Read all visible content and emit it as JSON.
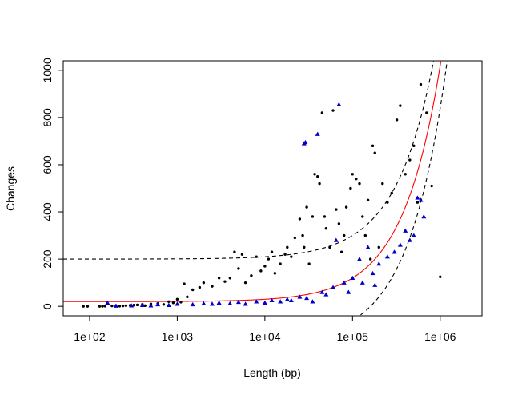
{
  "chart_data": {
    "type": "scatter",
    "title": "",
    "xlabel": "Length (bp)",
    "ylabel": "Changes",
    "x_scale": "log",
    "xlim": [
      50,
      3000000
    ],
    "ylim": [
      -40,
      1040
    ],
    "x_ticks": [
      {
        "value": 100,
        "label": "1e+02"
      },
      {
        "value": 1000,
        "label": "1e+03"
      },
      {
        "value": 10000,
        "label": "1e+04"
      },
      {
        "value": 100000,
        "label": "1e+05"
      },
      {
        "value": 1000000,
        "label": "1e+06"
      }
    ],
    "y_ticks": [
      {
        "value": 0,
        "label": "0"
      },
      {
        "value": 200,
        "label": "200"
      },
      {
        "value": 400,
        "label": "400"
      },
      {
        "value": 600,
        "label": "600"
      },
      {
        "value": 800,
        "label": "800"
      },
      {
        "value": 1000,
        "label": "1000"
      }
    ],
    "grid": false,
    "legend": "none",
    "series": [
      {
        "marker": "circle",
        "color": "#000000",
        "points": [
          [
            85,
            0
          ],
          [
            95,
            0
          ],
          [
            130,
            0
          ],
          [
            140,
            0
          ],
          [
            150,
            1
          ],
          [
            180,
            2
          ],
          [
            200,
            3
          ],
          [
            220,
            1
          ],
          [
            240,
            2
          ],
          [
            260,
            3
          ],
          [
            290,
            4
          ],
          [
            320,
            5
          ],
          [
            350,
            6
          ],
          [
            400,
            8
          ],
          [
            430,
            3
          ],
          [
            500,
            10
          ],
          [
            600,
            12
          ],
          [
            700,
            8
          ],
          [
            800,
            20
          ],
          [
            900,
            15
          ],
          [
            1000,
            30
          ],
          [
            1100,
            18
          ],
          [
            1200,
            95
          ],
          [
            1300,
            40
          ],
          [
            1500,
            70
          ],
          [
            1800,
            80
          ],
          [
            2000,
            100
          ],
          [
            2500,
            85
          ],
          [
            3000,
            120
          ],
          [
            3500,
            105
          ],
          [
            4000,
            120
          ],
          [
            4500,
            230
          ],
          [
            5000,
            160
          ],
          [
            5500,
            220
          ],
          [
            6000,
            100
          ],
          [
            7000,
            130
          ],
          [
            8000,
            210
          ],
          [
            9000,
            150
          ],
          [
            10000,
            170
          ],
          [
            11000,
            200
          ],
          [
            12000,
            230
          ],
          [
            13000,
            140
          ],
          [
            15000,
            180
          ],
          [
            17000,
            220
          ],
          [
            18000,
            250
          ],
          [
            20000,
            210
          ],
          [
            22000,
            290
          ],
          [
            25000,
            370
          ],
          [
            27000,
            300
          ],
          [
            28000,
            250
          ],
          [
            30000,
            420
          ],
          [
            32000,
            180
          ],
          [
            35000,
            380
          ],
          [
            37000,
            560
          ],
          [
            40000,
            550
          ],
          [
            42000,
            520
          ],
          [
            45000,
            820
          ],
          [
            48000,
            380
          ],
          [
            50000,
            330
          ],
          [
            55000,
            250
          ],
          [
            60000,
            830
          ],
          [
            65000,
            410
          ],
          [
            70000,
            350
          ],
          [
            75000,
            230
          ],
          [
            80000,
            300
          ],
          [
            85000,
            420
          ],
          [
            95000,
            500
          ],
          [
            100000,
            560
          ],
          [
            110000,
            540
          ],
          [
            120000,
            520
          ],
          [
            130000,
            380
          ],
          [
            140000,
            300
          ],
          [
            150000,
            450
          ],
          [
            160000,
            200
          ],
          [
            170000,
            680
          ],
          [
            180000,
            650
          ],
          [
            200000,
            250
          ],
          [
            220000,
            520
          ],
          [
            250000,
            440
          ],
          [
            280000,
            480
          ],
          [
            320000,
            790
          ],
          [
            350000,
            850
          ],
          [
            400000,
            560
          ],
          [
            450000,
            620
          ],
          [
            500000,
            680
          ],
          [
            550000,
            440
          ],
          [
            600000,
            940
          ],
          [
            700000,
            820
          ],
          [
            800000,
            510
          ],
          [
            1000000,
            125
          ]
        ]
      },
      {
        "marker": "triangle",
        "color": "#0000cc",
        "points": [
          [
            160,
            15
          ],
          [
            200,
            2
          ],
          [
            300,
            3
          ],
          [
            400,
            5
          ],
          [
            500,
            3
          ],
          [
            600,
            8
          ],
          [
            800,
            5
          ],
          [
            1000,
            10
          ],
          [
            1500,
            8
          ],
          [
            2000,
            12
          ],
          [
            2500,
            10
          ],
          [
            3000,
            15
          ],
          [
            4000,
            12
          ],
          [
            5000,
            18
          ],
          [
            6000,
            10
          ],
          [
            8000,
            20
          ],
          [
            10000,
            15
          ],
          [
            12000,
            25
          ],
          [
            15000,
            20
          ],
          [
            18000,
            30
          ],
          [
            20000,
            25
          ],
          [
            25000,
            40
          ],
          [
            28000,
            690
          ],
          [
            29000,
            695
          ],
          [
            30000,
            35
          ],
          [
            35000,
            20
          ],
          [
            40000,
            730
          ],
          [
            45000,
            60
          ],
          [
            50000,
            50
          ],
          [
            60000,
            80
          ],
          [
            70000,
            855
          ],
          [
            80000,
            100
          ],
          [
            100000,
            120
          ],
          [
            120000,
            200
          ],
          [
            150000,
            250
          ],
          [
            170000,
            140
          ],
          [
            200000,
            180
          ],
          [
            250000,
            210
          ],
          [
            300000,
            230
          ],
          [
            350000,
            260
          ],
          [
            400000,
            320
          ],
          [
            450000,
            280
          ],
          [
            500000,
            300
          ],
          [
            550000,
            460
          ],
          [
            600000,
            450
          ],
          [
            650000,
            380
          ],
          [
            65000,
            280
          ],
          [
            90000,
            60
          ],
          [
            130000,
            100
          ],
          [
            180000,
            90
          ]
        ]
      }
    ],
    "curves": [
      {
        "color": "#ff0000",
        "style": "solid",
        "formula": "20 + 0.001 * x"
      },
      {
        "color": "#000000",
        "style": "dashed",
        "formula": "200 + 0.001 * x"
      },
      {
        "color": "#000000",
        "style": "dashed",
        "formula": "-160 + 0.001 * x"
      }
    ]
  }
}
